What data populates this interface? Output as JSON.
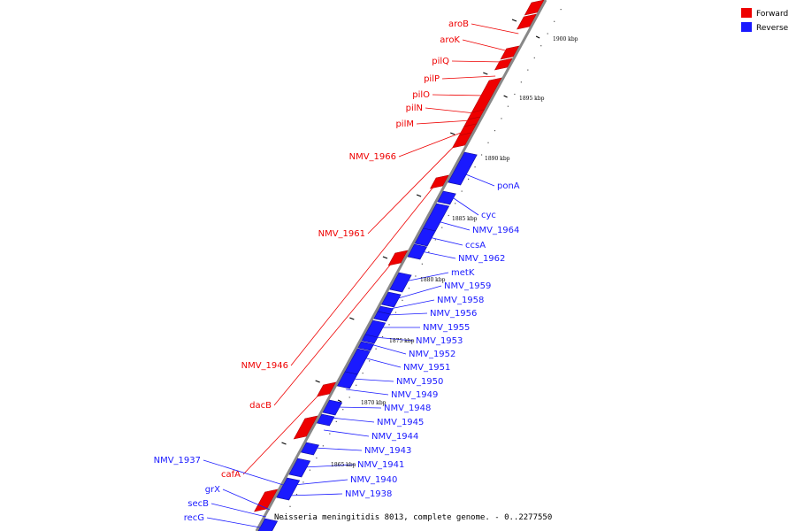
{
  "caption": "Neisseria meningitidis 8013, complete genome. - 0..2277550",
  "legend": {
    "forward": {
      "label": "Forward",
      "color": "#ee0000"
    },
    "reverse": {
      "label": "Reverse",
      "color": "#1a1aff"
    }
  },
  "ticks": [
    "1900 kbp",
    "1895 kbp",
    "1890 kbp",
    "1885 kbp",
    "1880 kbp",
    "1875 kbp",
    "1870 kbp",
    "1865 kbp"
  ],
  "forward_genes": [
    "aroB",
    "aroK",
    "pilQ",
    "pilP",
    "pilO",
    "pilN",
    "pilM",
    "NMV_1966",
    "NMV_1961",
    "NMV_1946",
    "dacB",
    "cafA"
  ],
  "reverse_genes": [
    "ponA",
    "cyc",
    "NMV_1964",
    "ccsA",
    "NMV_1962",
    "metK",
    "NMV_1959",
    "NMV_1958",
    "NMV_1956",
    "NMV_1955",
    "NMV_1953",
    "NMV_1952",
    "NMV_1951",
    "NMV_1950",
    "NMV_1949",
    "NMV_1948",
    "NMV_1945",
    "NMV_1944",
    "NMV_1943",
    "NMV_1941",
    "NMV_1940",
    "NMV_1938",
    "NMV_1937",
    "grX",
    "secB",
    "recG"
  ]
}
